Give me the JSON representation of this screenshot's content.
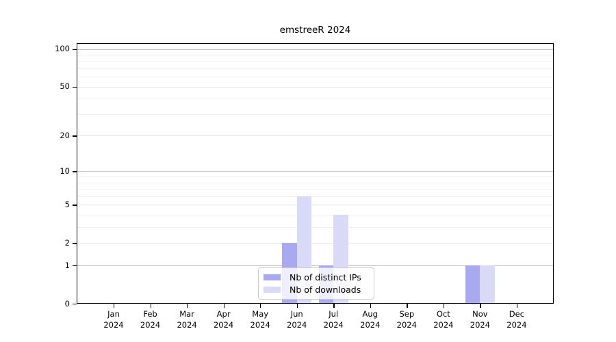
{
  "chart_data": {
    "type": "bar",
    "title": "emstreeR 2024",
    "categories": [
      "Jan 2024",
      "Feb 2024",
      "Mar 2024",
      "Apr 2024",
      "May 2024",
      "Jun 2024",
      "Jul 2024",
      "Aug 2024",
      "Sep 2024",
      "Oct 2024",
      "Nov 2024",
      "Dec 2024"
    ],
    "series": [
      {
        "name": "Nb of distinct IPs",
        "color": "#a9a9f2",
        "values": [
          0,
          0,
          0,
          0,
          0,
          2,
          1,
          0,
          0,
          0,
          1,
          0
        ]
      },
      {
        "name": "Nb of downloads",
        "color": "#d9d9f8",
        "values": [
          0,
          0,
          0,
          0,
          0,
          6,
          4,
          0,
          0,
          0,
          1,
          0
        ]
      }
    ],
    "yscale": "log1p",
    "ylim": [
      0,
      100
    ],
    "ytick_labels": [
      0,
      1,
      2,
      5,
      10,
      20,
      50,
      100
    ],
    "gridlines": {
      "decade_values": [
        1,
        10,
        100
      ],
      "major_values": [
        2,
        5,
        20,
        50
      ],
      "minor_values": [
        3,
        4,
        6,
        7,
        8,
        9,
        30,
        40,
        60,
        70,
        80,
        90
      ],
      "decade_color": "#c4c4c4",
      "major_color": "#e5e5e5",
      "minor_color": "#efefef"
    },
    "legend_position": "bottom-center",
    "background_color": "#ffffff",
    "axis_color": "#000000"
  }
}
